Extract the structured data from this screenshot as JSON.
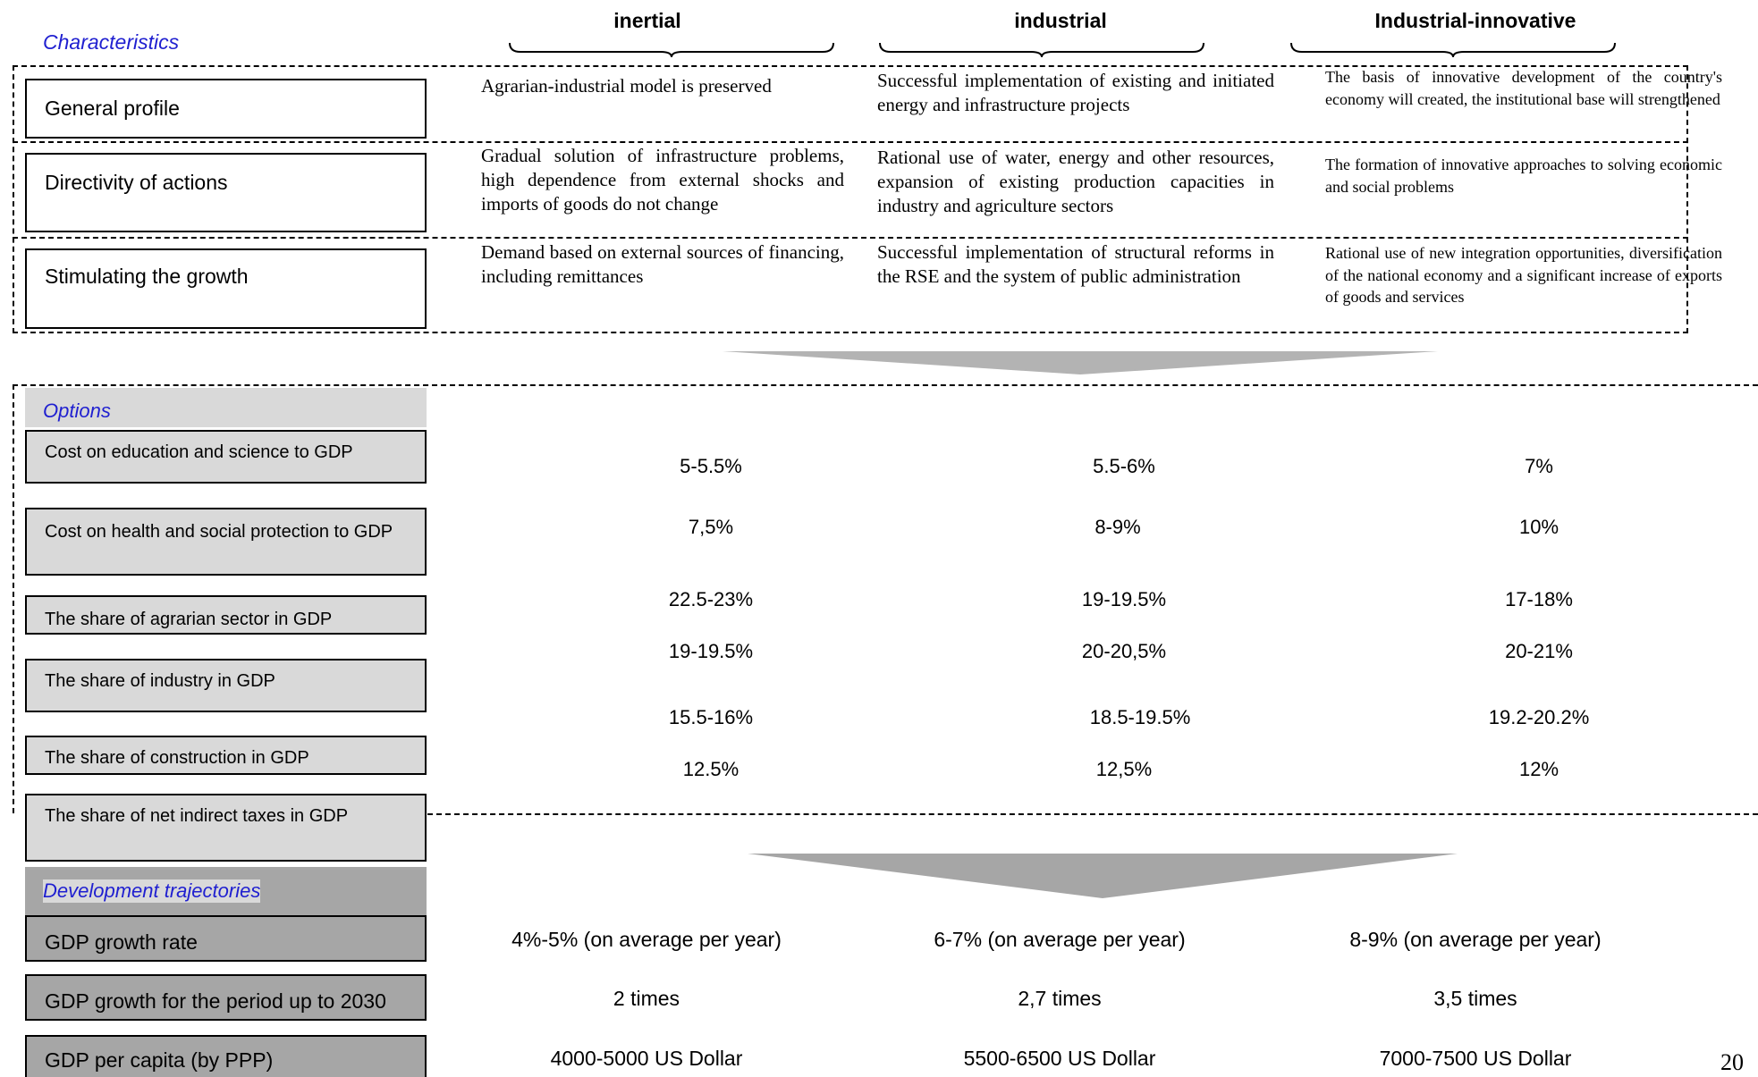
{
  "columns": {
    "inertial": "inertial",
    "industrial": "industrial",
    "innovative": "Industrial-innovative"
  },
  "characteristics": {
    "label": "Characteristics",
    "rows": [
      {
        "label": "General profile",
        "inertial": "Agrarian-industrial model is preserved",
        "industrial": "Successful implementation of existing and initiated energy and infrastructure projects",
        "innovative": "The basis of innovative development of the country's economy will created, the institutional base will strengthened"
      },
      {
        "label": "Directivity of actions",
        "inertial": "Gradual solution of infrastructure problems, high dependence from external shocks and imports of goods do not change",
        "industrial": "Rational use of water, energy and other resources, expansion of existing production capacities in industry and agriculture sectors",
        "innovative": "The formation of innovative approaches to solving economic and social problems"
      },
      {
        "label": "Stimulating the growth",
        "inertial": "Demand based on external sources of financing, including remittances",
        "industrial": "Successful implementation of structural reforms in the RSE and the system of public administration",
        "innovative": "Rational use of new integration opportunities, diversification of the national economy and a significant increase of exports of goods and services"
      }
    ]
  },
  "options": {
    "label": "Options",
    "rows": [
      {
        "label": "Cost on education and science to GDP",
        "inertial": "5-5.5%",
        "industrial": "5.5-6%",
        "innovative": "7%"
      },
      {
        "label": "Cost on health and social protection to GDP",
        "inertial": "7,5%",
        "industrial": "8-9%",
        "innovative": "10%"
      },
      {
        "label": "The share of agrarian sector in GDP",
        "inertial": "22.5-23%",
        "industrial": "19-19.5%",
        "innovative": "17-18%"
      },
      {
        "label": "The share of industry in GDP",
        "inertial": "19-19.5%",
        "industrial": "20-20,5%",
        "innovative": "20-21%"
      },
      {
        "label": "The share of construction in GDP",
        "inertial": "15.5-16%",
        "industrial": "18.5-19.5%",
        "innovative": "19.2-20.2%"
      },
      {
        "label": "The share of net indirect taxes in GDP",
        "inertial": "12.5%",
        "industrial": "12,5%",
        "innovative": "12%"
      }
    ]
  },
  "trajectories": {
    "label": "Development trajectories",
    "rows": [
      {
        "label": "GDP growth rate",
        "inertial": "4%-5% (on average per year)",
        "industrial": "6-7% (on average per year)",
        "innovative": "8-9% (on average per year)"
      },
      {
        "label": "GDP growth for the period up to 2030",
        "inertial": "2 times",
        "industrial": "2,7 times",
        "innovative": "3,5 times"
      },
      {
        "label": "GDP per capita (by PPP)",
        "inertial": "4000-5000 US Dollar",
        "industrial": "5500-6500 US Dollar",
        "innovative": "7000-7500 US Dollar"
      }
    ]
  },
  "page_number": "20",
  "colors": {
    "section_label": "#1f1fd0",
    "option_box": "#d9d9d9",
    "trajectory_box": "#a6a6a6",
    "arrow": "#b3b3b3"
  }
}
